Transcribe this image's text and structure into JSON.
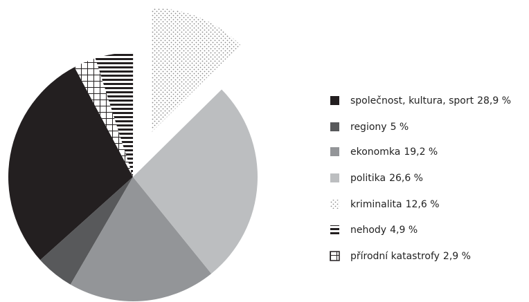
{
  "chart_data": {
    "type": "pie",
    "categories": [
      "společnost, kultura, sport",
      "regiony",
      "ekonomka",
      "politika",
      "kriminalita",
      "nehody",
      "přírodní katastrofy"
    ],
    "values": [
      28.9,
      5,
      19.2,
      26.6,
      12.6,
      4.9,
      2.9
    ],
    "value_labels": [
      "28,9 %",
      "5 %",
      "19,2 %",
      "26,6 %",
      "12,6 %",
      "4,9 %",
      "2,9 %"
    ],
    "colors": [
      "#231f20",
      "#58595b",
      "#939598",
      "#bcbec0",
      "dots",
      "stripes",
      "grid"
    ],
    "exploded": [
      false,
      false,
      false,
      false,
      true,
      false,
      false
    ],
    "direction": "counterclockwise",
    "legend": "right"
  }
}
